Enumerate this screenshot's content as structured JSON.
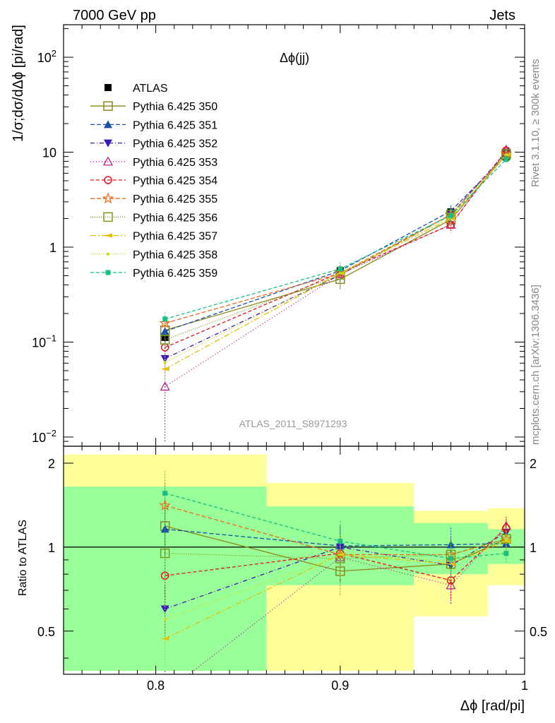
{
  "header": {
    "left": "7000 GeV pp",
    "right": "Jets"
  },
  "side_text": {
    "top": "Rivet 3.1.10, ≥ 300k events",
    "bottom": "mcplots.cern.ch [arXiv:1306.3436]"
  },
  "chart_data": [
    {
      "type": "scatter",
      "title": "Δϕ(jj)",
      "ylabel": "1/σ;dσ/dΔϕ [pi/rad]",
      "yscale": "log",
      "ylim": [
        0.008,
        220
      ],
      "xlim": [
        0.75,
        1.0
      ],
      "y_ticks": [
        {
          "v": 0.01,
          "b": "10",
          "e": "−2"
        },
        {
          "v": 0.1,
          "b": "10",
          "e": "−1"
        },
        {
          "v": 1,
          "b": "1",
          "e": ""
        },
        {
          "v": 10,
          "b": "10",
          "e": ""
        },
        {
          "v": 100,
          "b": "10",
          "e": "2"
        }
      ],
      "watermark": "ATLAS_2011_S8971293",
      "legend_placement": "top-left",
      "x": [
        0.805,
        0.9,
        0.96,
        0.99
      ],
      "series": [
        {
          "name": "ATLAS",
          "color": "#000000",
          "dash": "",
          "marker": "square-filled",
          "values": [
            0.112,
            0.565,
            2.35,
            8.9
          ],
          "errors": [
            0.012,
            0.05,
            0.2,
            0.6
          ]
        },
        {
          "name": "Pythia 6.425 350",
          "color": "#8a8a20",
          "dash": "",
          "marker": "square-open",
          "values": [
            0.133,
            0.46,
            1.95,
            9.4
          ],
          "errors": [
            0.02,
            0.1,
            0.35,
            0.8
          ]
        },
        {
          "name": "Pythia 6.425 351",
          "color": "#1a4fa8",
          "dash": "6,3",
          "marker": "triangle-up-filled",
          "values": [
            0.13,
            0.565,
            2.4,
            9.3
          ],
          "errors": [
            0.02,
            0.08,
            0.35,
            0.8
          ]
        },
        {
          "name": "Pythia 6.425 352",
          "color": "#3a1ab0",
          "dash": "6,3,1,3",
          "marker": "triangle-down-filled",
          "values": [
            0.067,
            0.51,
            2.2,
            10.0
          ],
          "errors": [
            0.02,
            0.08,
            0.35,
            0.8
          ]
        },
        {
          "name": "Pythia 6.425 353",
          "color": "#b0158a",
          "dash": "1,3",
          "marker": "triangle-up-open",
          "values": [
            0.034,
            0.52,
            1.72,
            10.6
          ],
          "errors": [
            0.025,
            0.08,
            0.3,
            0.8
          ]
        },
        {
          "name": "Pythia 6.425 354",
          "color": "#e0151f",
          "dash": "5,3",
          "marker": "circle-open",
          "values": [
            0.088,
            0.54,
            1.72,
            10.4
          ],
          "errors": [
            0.02,
            0.08,
            0.3,
            0.8
          ]
        },
        {
          "name": "Pythia 6.425 355",
          "color": "#f06a1a",
          "dash": "6,3",
          "marker": "star-open",
          "values": [
            0.158,
            0.53,
            2.2,
            9.6
          ],
          "errors": [
            0.025,
            0.08,
            0.35,
            0.8
          ]
        },
        {
          "name": "Pythia 6.425 356",
          "color": "#7a9a18",
          "dash": "1,2",
          "marker": "square-open",
          "values": [
            0.106,
            0.51,
            2.2,
            9.6
          ],
          "errors": [
            0.02,
            0.08,
            0.35,
            0.8
          ]
        },
        {
          "name": "Pythia 6.425 357",
          "color": "#e0c010",
          "dash": "8,3,2,3",
          "marker": "tri-filled",
          "values": [
            0.052,
            0.53,
            2.0,
            9.4
          ],
          "errors": [
            0.015,
            0.08,
            0.35,
            0.8
          ]
        },
        {
          "name": "Pythia 6.425 358",
          "color": "#c8dc20",
          "dash": "1,2",
          "marker": "dot",
          "values": [
            0.061,
            0.53,
            2.1,
            9.4
          ],
          "errors": [
            0.015,
            0.08,
            0.35,
            0.8
          ]
        },
        {
          "name": "Pythia 6.425 359",
          "color": "#1abf80",
          "dash": "5,3",
          "marker": "square-filled-small",
          "values": [
            0.175,
            0.59,
            2.15,
            8.4
          ],
          "errors": [
            0.03,
            0.1,
            0.35,
            0.8
          ]
        }
      ]
    },
    {
      "type": "scatter",
      "ylabel": "Ratio to ATLAS",
      "xlabel": "Δϕ [rad/pi]",
      "ylim": [
        0.35,
        2.3
      ],
      "yscale": "log",
      "y_ticks": [
        {
          "v": 0.5,
          "label": "0.5"
        },
        {
          "v": 1,
          "label": "1"
        },
        {
          "v": 2,
          "label": "2"
        }
      ],
      "x_ticks": [
        {
          "v": 0.8,
          "label": "0.8"
        },
        {
          "v": 0.9,
          "label": "0.9"
        },
        {
          "v": 1.0,
          "label": "1"
        }
      ],
      "bands": [
        {
          "x0": 0.75,
          "x1": 0.86,
          "yellow": [
            0.36,
            2.15
          ],
          "green": [
            0.36,
            1.65
          ]
        },
        {
          "x0": 0.86,
          "x1": 0.94,
          "yellow": [
            0.36,
            1.7
          ],
          "green": [
            0.73,
            1.4
          ]
        },
        {
          "x0": 0.94,
          "x1": 0.98,
          "yellow": [
            0.565,
            1.35
          ],
          "green": [
            0.8,
            1.22
          ]
        },
        {
          "x0": 0.98,
          "x1": 1.0,
          "yellow": [
            0.73,
            1.38
          ],
          "green": [
            0.87,
            1.16
          ]
        }
      ],
      "band_colors": {
        "yellow": "#ffff99",
        "green": "#99ff99"
      },
      "x": [
        0.805,
        0.9,
        0.96,
        0.99
      ],
      "ratios": [
        [
          1.19,
          0.82,
          0.87,
          1.07
        ],
        [
          1.16,
          1.01,
          1.02,
          1.03
        ],
        [
          0.6,
          1.0,
          0.86,
          1.13
        ],
        [
          0.3,
          0.92,
          0.73,
          1.19
        ],
        [
          0.79,
          0.95,
          0.76,
          1.17
        ],
        [
          1.41,
          0.94,
          0.94,
          1.07
        ],
        [
          0.95,
          0.91,
          0.94,
          1.07
        ],
        [
          0.47,
          0.94,
          0.87,
          1.05
        ],
        [
          0.55,
          0.94,
          0.89,
          1.06
        ],
        [
          1.56,
          1.05,
          0.91,
          0.95
        ]
      ],
      "ratio_errors": [
        0.2,
        0.18,
        0.15,
        0.08
      ]
    }
  ]
}
